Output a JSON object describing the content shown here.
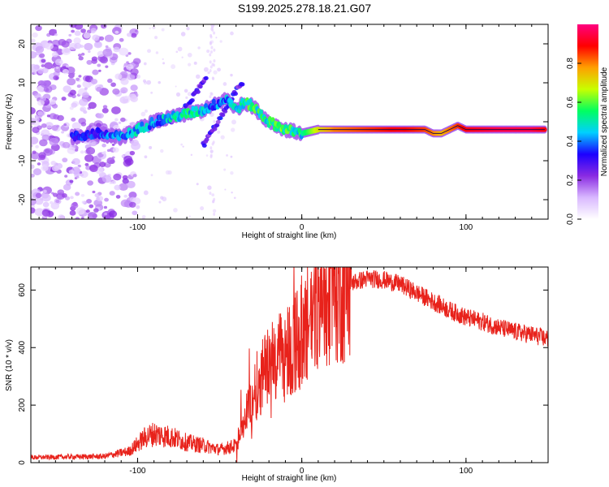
{
  "title": "S199.2025.278.18.21.G07",
  "chart_data": [
    {
      "type": "heatmap",
      "name": "spectrogram",
      "xlabel": "Height of straight line (km)",
      "ylabel": "Frequency (Hz)",
      "xlim": [
        -165,
        150
      ],
      "ylim": [
        -25,
        25
      ],
      "xticks": [
        -100,
        0,
        100
      ],
      "xtick_labels": [
        "-100",
        "0",
        "100"
      ],
      "yticks": [
        -20,
        -10,
        0,
        10,
        20
      ],
      "ytick_labels": [
        "-20",
        "-10",
        "0",
        "10",
        "20"
      ],
      "colorbar": {
        "label": "Normalized spectral amplitude",
        "range": [
          0.0,
          1.0
        ],
        "ticks": [
          0.0,
          0.2,
          0.4,
          0.6,
          0.8
        ],
        "tick_labels": [
          "0.0",
          "0.2",
          "0.4",
          "0.6",
          "0.8"
        ],
        "colors": [
          "#ffffff",
          "#d9b8ff",
          "#8a2be2",
          "#1c00ff",
          "#00d0ff",
          "#00ff60",
          "#c8ff00",
          "#ffa000",
          "#ff0000",
          "#ff0080"
        ]
      },
      "ridge": {
        "x": [
          -140,
          -125,
          -110,
          -100,
          -90,
          -80,
          -70,
          -60,
          -55,
          -50,
          -45,
          -40,
          -35,
          -30,
          -25,
          -20,
          -15,
          -10,
          0,
          10,
          20,
          40,
          60,
          75,
          80,
          85,
          90,
          95,
          100,
          120,
          140,
          148
        ],
        "y": [
          -4,
          -3,
          -4,
          -2,
          0,
          1,
          2,
          3,
          4,
          5,
          6,
          3,
          5,
          4,
          2,
          0,
          -1,
          -2,
          -3,
          -2,
          -2,
          -2,
          -2,
          -2,
          -3,
          -3,
          -2,
          -1,
          -2,
          -2,
          -2,
          -2
        ],
        "amplitude": [
          0.3,
          0.35,
          0.4,
          0.45,
          0.4,
          0.45,
          0.5,
          0.45,
          0.35,
          0.4,
          0.4,
          0.45,
          0.5,
          0.55,
          0.5,
          0.5,
          0.55,
          0.55,
          0.5,
          0.7,
          0.8,
          0.85,
          0.9,
          0.85,
          0.8,
          0.75,
          0.8,
          0.85,
          0.9,
          0.95,
          0.95,
          0.9
        ]
      },
      "branches": [
        {
          "x": [
            -60,
            -48,
            -40,
            -36
          ],
          "y": [
            -6,
            2,
            8,
            10
          ],
          "amplitude": 0.3
        },
        {
          "x": [
            -80,
            -70,
            -62,
            -58
          ],
          "y": [
            0,
            4,
            9,
            11
          ],
          "amplitude": 0.3
        }
      ]
    },
    {
      "type": "line",
      "name": "snr",
      "xlabel": "Height of straight line (km)",
      "ylabel": "SNR (10 * v/v)",
      "xlim": [
        -165,
        150
      ],
      "ylim": [
        0,
        680
      ],
      "xticks": [
        -100,
        0,
        100
      ],
      "xtick_labels": [
        "-100",
        "0",
        "100"
      ],
      "yticks": [
        0,
        200,
        400,
        600
      ],
      "ytick_labels": [
        "0",
        "200",
        "400",
        "600"
      ],
      "color": "#e8221b",
      "envelope": {
        "x": [
          -165,
          -120,
          -105,
          -95,
          -90,
          -80,
          -70,
          -60,
          -50,
          -40,
          -35,
          -30,
          -25,
          -20,
          -10,
          0,
          10,
          20,
          30,
          40,
          50,
          60,
          70,
          80,
          90,
          100,
          110,
          120,
          130,
          140,
          150
        ],
        "y": [
          18,
          22,
          40,
          90,
          100,
          90,
          70,
          60,
          45,
          60,
          150,
          230,
          300,
          330,
          380,
          450,
          550,
          600,
          625,
          640,
          635,
          620,
          590,
          560,
          530,
          505,
          490,
          470,
          455,
          445,
          430
        ]
      }
    }
  ]
}
